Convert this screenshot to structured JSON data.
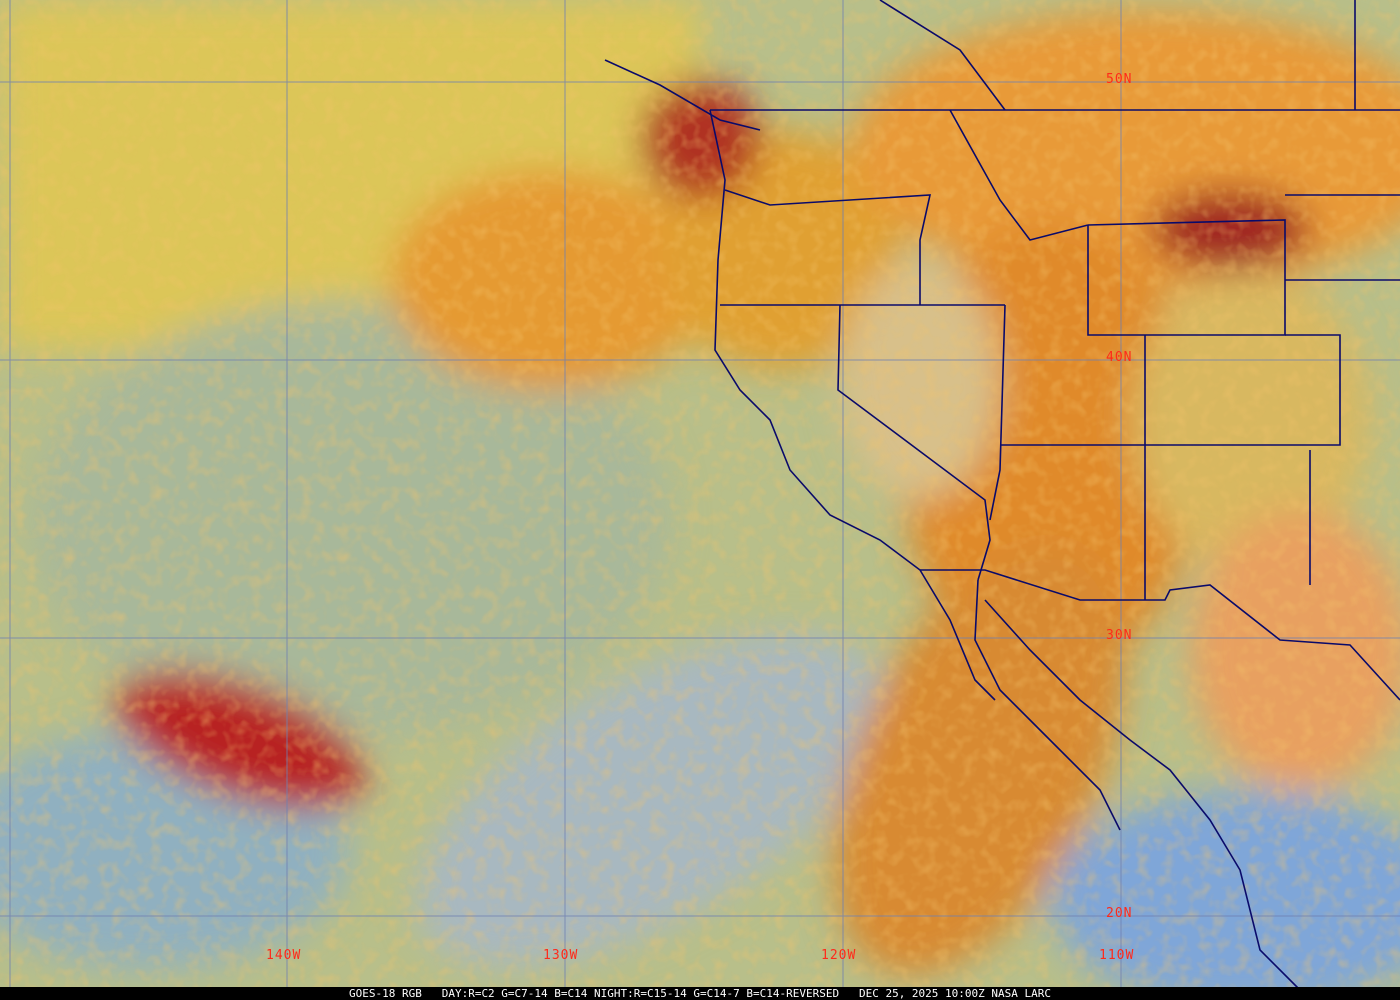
{
  "image": {
    "type": "satellite-rgb-composite",
    "colors": {
      "ocean_clear": "#8fb0c8",
      "low_cloud": "#e0c060",
      "high_cloud": "#e08a2a",
      "cold_cloud": "#b01818",
      "boundaries": "#0a0a6a",
      "grid": "#7080b0",
      "labels": "#ff2a1a"
    }
  },
  "grid_labels": {
    "lat": [
      "50N",
      "40N",
      "30N",
      "20N"
    ],
    "lon": [
      "140W",
      "130W",
      "120W",
      "110W"
    ]
  },
  "caption": {
    "satellite": "GOES-18 RGB",
    "day_recipe": "DAY:R=C2 G=C7-14 B=C14",
    "night_recipe": "NIGHT:R=C15-14 G=C14-7 B=C14-REVERSED",
    "timestamp": "DEC 25, 2025 10:00Z",
    "source": "NASA LARC"
  }
}
